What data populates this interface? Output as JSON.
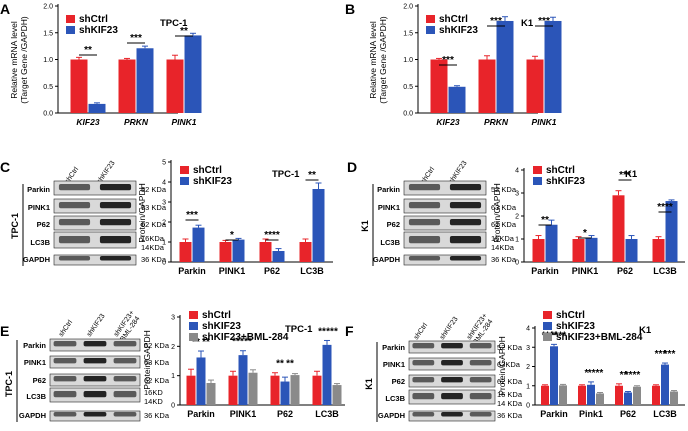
{
  "colors": {
    "ctrl": "#e8242a",
    "kd": "#2b55b8",
    "rescue": "#8a8a8a"
  },
  "chart_data": [
    {
      "id": "A",
      "type": "bar",
      "panel_label": "A",
      "title": "TPC-1",
      "ylabel": "Relative mRNA level\n(Target Gene /GAPDH)",
      "ylim": [
        0,
        2.0
      ],
      "yticks": [
        "0.0",
        "0.5",
        "1.0",
        "1.5",
        "2.0"
      ],
      "categories": [
        "KIF23",
        "PRKN",
        "PINK1"
      ],
      "category_style": "italic",
      "series": [
        {
          "name": "shCtrl",
          "color": "#e8242a",
          "values": [
            1.0,
            1.0,
            1.0
          ],
          "errors": [
            0.04,
            0.02,
            0.08
          ]
        },
        {
          "name": "shKIF23",
          "color": "#2b55b8",
          "values": [
            0.17,
            1.21,
            1.45
          ],
          "errors": [
            0.02,
            0.04,
            0.04
          ]
        }
      ],
      "annotations": [
        "**",
        "***",
        "**"
      ]
    },
    {
      "id": "B",
      "type": "bar",
      "panel_label": "B",
      "title": "K1",
      "ylabel": "Relative mRNA level\n(Target Gene /GAPDH)",
      "ylim": [
        0,
        2.0
      ],
      "yticks": [
        "0.0",
        "0.5",
        "1.0",
        "1.5",
        "2.0"
      ],
      "categories": [
        "KIF23",
        "PRKN",
        "PINK1"
      ],
      "category_style": "italic",
      "series": [
        {
          "name": "shCtrl",
          "color": "#e8242a",
          "values": [
            1.0,
            1.0,
            1.0
          ],
          "errors": [
            0.02,
            0.07,
            0.06
          ]
        },
        {
          "name": "shKIF23",
          "color": "#2b55b8",
          "values": [
            0.49,
            1.72,
            1.72
          ],
          "errors": [
            0.02,
            0.08,
            0.07
          ]
        }
      ],
      "annotations": [
        "***",
        "***",
        "***"
      ]
    },
    {
      "id": "C",
      "type": "bar",
      "panel_label": "C",
      "title": "TPC-1",
      "ylabel": "Protein/GAPDH",
      "ylim": [
        0,
        5
      ],
      "yticks": [
        "0",
        "1",
        "2",
        "3",
        "4",
        "5"
      ],
      "categories": [
        "Parkin",
        "PINK1",
        "P62",
        "LC3B"
      ],
      "category_style": "bold",
      "series": [
        {
          "name": "shCtrl",
          "color": "#e8242a",
          "values": [
            1.0,
            1.0,
            1.0,
            1.0
          ],
          "errors": [
            0.15,
            0.08,
            0.15,
            0.15
          ]
        },
        {
          "name": "shKIF23",
          "color": "#2b55b8",
          "values": [
            1.72,
            1.12,
            0.55,
            3.65
          ],
          "errors": [
            0.12,
            0.06,
            0.12,
            0.3
          ]
        }
      ],
      "annotations": [
        "***",
        "*",
        "****",
        "**"
      ]
    },
    {
      "id": "D",
      "type": "bar",
      "panel_label": "D",
      "title": "K1",
      "ylabel": "Protein/GAPDH",
      "ylim": [
        0,
        4
      ],
      "yticks": [
        "0",
        "1",
        "2",
        "3",
        "4"
      ],
      "categories": [
        "Parkin",
        "PINK1",
        "P62",
        "LC3B"
      ],
      "category_style": "bold",
      "series": [
        {
          "name": "shCtrl",
          "color": "#e8242a",
          "values": [
            1.0,
            1.0,
            2.9,
            1.0
          ],
          "errors": [
            0.15,
            0.1,
            0.2,
            0.1
          ]
        },
        {
          "name": "shKIF23",
          "color": "#2b55b8",
          "values": [
            1.62,
            1.05,
            1.0,
            2.65
          ],
          "errors": [
            0.2,
            0.1,
            0.15,
            0.05
          ]
        }
      ],
      "annotations": [
        "**",
        "*",
        "***",
        "****"
      ]
    },
    {
      "id": "E",
      "type": "bar",
      "panel_label": "E",
      "title": "TPC-1",
      "ylabel": "Protein/GAPDH",
      "ylim": [
        0,
        3
      ],
      "yticks": [
        "0",
        "1",
        "2",
        "3"
      ],
      "categories": [
        "Parkin",
        "PINK1",
        "P62",
        "LC3B"
      ],
      "category_style": "bold",
      "series": [
        {
          "name": "shCtrl",
          "color": "#e8242a",
          "values": [
            1.0,
            1.0,
            1.0,
            1.0
          ],
          "errors": [
            0.22,
            0.15,
            0.1,
            0.15
          ]
        },
        {
          "name": "shKIF23",
          "color": "#2b55b8",
          "values": [
            1.62,
            1.7,
            0.8,
            2.05
          ],
          "errors": [
            0.22,
            0.15,
            0.15,
            0.15
          ]
        },
        {
          "name": "shKIF23+BML-284",
          "color": "#8a8a8a",
          "values": [
            0.75,
            1.1,
            1.02,
            0.68
          ],
          "errors": [
            0.1,
            0.1,
            0.05,
            0.05
          ]
        }
      ],
      "annotations": [
        "**",
        "**",
        "***",
        "**",
        "**",
        "**",
        "**",
        "***"
      ]
    },
    {
      "id": "F",
      "type": "bar",
      "panel_label": "F",
      "title": "K1",
      "ylabel": "Protein/GAPDH",
      "ylim": [
        0,
        4
      ],
      "yticks": [
        "0",
        "1",
        "2",
        "3",
        "4"
      ],
      "categories": [
        "Parkin",
        "Pink1",
        "P62",
        "LC3B"
      ],
      "category_style": "bold",
      "series": [
        {
          "name": "shCtrl",
          "color": "#e8242a",
          "values": [
            1.0,
            1.0,
            1.0,
            1.0
          ],
          "errors": [
            0.05,
            0.05,
            0.1,
            0.05
          ]
        },
        {
          "name": "shKIF23",
          "color": "#2b55b8",
          "values": [
            3.05,
            1.05,
            0.65,
            2.1
          ],
          "errors": [
            0.1,
            0.15,
            0.05,
            0.08
          ]
        },
        {
          "name": "shKIF23+BML-284",
          "color": "#8a8a8a",
          "values": [
            1.02,
            0.6,
            0.95,
            0.7
          ],
          "errors": [
            0.05,
            0.05,
            0.05,
            0.05
          ]
        }
      ],
      "annotations": [
        "****",
        "****",
        "*",
        "****",
        "**",
        "****",
        "***",
        "***"
      ]
    }
  ],
  "blots": {
    "C": {
      "cell": "TPC-1",
      "lanes": [
        "shCtrl",
        "shKIF23"
      ],
      "proteins": [
        "Parkin",
        "PINK1",
        "P62",
        "LC3B",
        "GAPDH"
      ],
      "sizes": [
        "52 KDa",
        "63 KDa",
        "62 KDa",
        "16KDa",
        "14KDa",
        "36 KDa"
      ]
    },
    "D": {
      "cell": "K1",
      "lanes": [
        "shCtrl",
        "shKIF23"
      ],
      "proteins": [
        "Parkin",
        "PINK1",
        "P62",
        "LC3B",
        "GAPDH"
      ],
      "sizes": [
        "52 KDa",
        "63 KDa",
        "62 KDa",
        "16KDa",
        "14KDa",
        "36 KDa"
      ]
    },
    "E": {
      "cell": "TPC-1",
      "lanes": [
        "shCtrl",
        "shKIF23",
        "shKIF23+\nBML-284"
      ],
      "proteins": [
        "Parkin",
        "PINK1",
        "P62",
        "LC3B",
        "GAPDH"
      ],
      "sizes": [
        "52 KDa",
        "63 KDa",
        "62 KDa",
        "16KD",
        "14KD",
        "36 KDa"
      ]
    },
    "F": {
      "cell": "K1",
      "lanes": [
        "shCtrl",
        "shKIF23",
        "shKIF23+\nBML-284"
      ],
      "proteins": [
        "Parkin",
        "PINK1",
        "P62",
        "LC3B",
        "GAPDH"
      ],
      "sizes": [
        "52 KDa",
        "63KDa",
        "62 KDa",
        "16 KDa",
        "14 KDa",
        "36 KDa"
      ]
    }
  }
}
